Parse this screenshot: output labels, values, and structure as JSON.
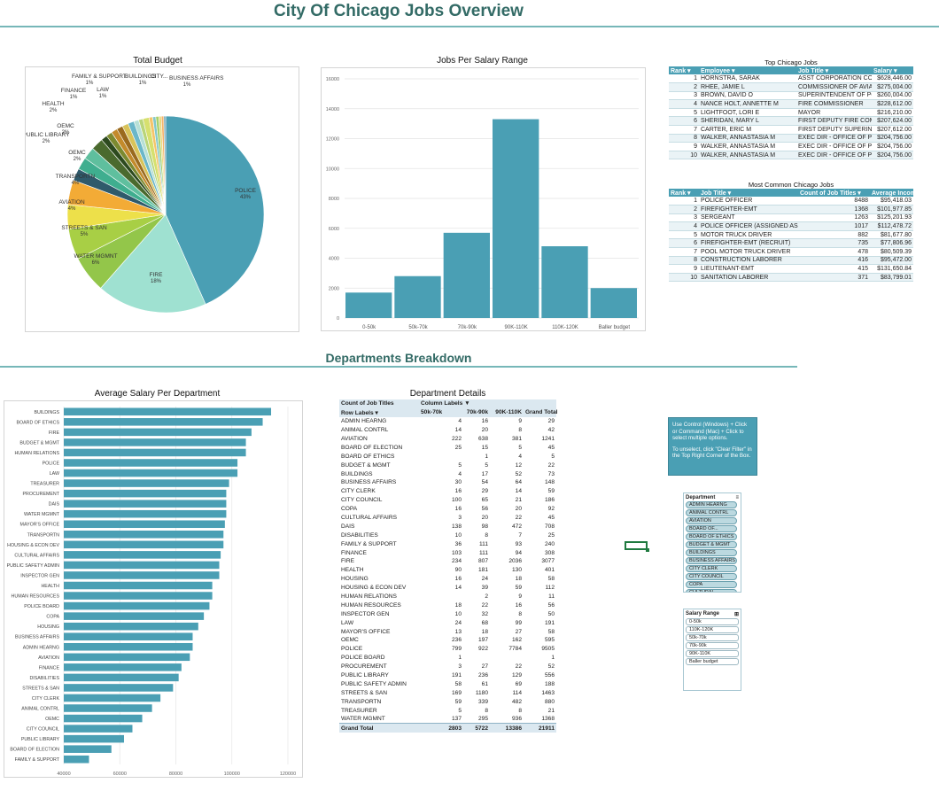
{
  "title": "City Of Chicago Jobs Overview",
  "section2_title": "Departments Breakdown",
  "pie": {
    "title": "Total Budget",
    "slices": [
      {
        "label": "POLICE",
        "pct": 43,
        "color": "#4a9fb4"
      },
      {
        "label": "FIRE",
        "pct": 18,
        "color": "#9fe1d1"
      },
      {
        "label": "WATER MGMNT",
        "pct": 6,
        "color": "#93c64a"
      },
      {
        "label": "STREETS & SAN",
        "pct": 5,
        "color": "#a8cf45"
      },
      {
        "label": "AVIATION",
        "pct": 4,
        "color": "#ede04a"
      },
      {
        "label": "TRANSPORTN",
        "pct": 4,
        "color": "#f3ab36"
      },
      {
        "label": "OEMC",
        "pct": 2,
        "color": "#2f5a6b"
      },
      {
        "label": "PUBLIC LIBRARY",
        "pct": 2,
        "color": "#3fae8f"
      },
      {
        "label": "OEMC",
        "pct": 2,
        "color": "#5fbf9e"
      },
      {
        "label": "HEALTH",
        "pct": 2,
        "color": "#4a6a2e"
      },
      {
        "label": "FINANCE",
        "pct": 1,
        "color": "#2d4a1f"
      },
      {
        "label": "FAMILY & SUPPORT",
        "pct": 1,
        "color": "#7c8a30"
      },
      {
        "label": "",
        "pct": 1,
        "color": "#c38a2b"
      },
      {
        "label": "LAW",
        "pct": 1,
        "color": "#9a6a1e"
      },
      {
        "label": "BUILDINGS",
        "pct": 1,
        "color": "#d8c35a"
      },
      {
        "label": "",
        "pct": 1,
        "color": "#6bb7c9"
      },
      {
        "label": "",
        "pct": 0.8,
        "color": "#b7e0d6"
      },
      {
        "label": "CITY...",
        "pct": 0.7,
        "color": "#b9d57a"
      },
      {
        "label": "BUSINESS AFFAIRS",
        "pct": 1,
        "color": "#d6e06e"
      },
      {
        "label": "",
        "pct": 0.6,
        "color": "#f5c46a"
      },
      {
        "label": "",
        "pct": 0.5,
        "color": "#83c7c9"
      },
      {
        "label": "",
        "pct": 0.5,
        "color": "#a7d16a"
      },
      {
        "label": "",
        "pct": 0.4,
        "color": "#e9d97a"
      },
      {
        "label": "",
        "pct": 0.4,
        "color": "#f6b36a"
      },
      {
        "label": "",
        "pct": 0.3,
        "color": "#6f9fb0"
      }
    ],
    "labels": [
      {
        "text": "FAMILY & SUPPORT",
        "pct": "1%"
      },
      {
        "text": "BUILDINGS",
        "pct": "1%"
      },
      {
        "text": "CITY...",
        "pct": ""
      },
      {
        "text": "BUSINESS AFFAIRS",
        "pct": "1%"
      },
      {
        "text": "FINANCE",
        "pct": "1%"
      },
      {
        "text": "LAW",
        "pct": "1%"
      },
      {
        "text": "HEALTH",
        "pct": "2%"
      },
      {
        "text": "OEMC",
        "pct": "2%"
      },
      {
        "text": "PUBLIC LIBRARY",
        "pct": "2%"
      },
      {
        "text": "OEMC",
        "pct": "2%"
      },
      {
        "text": "TRANSPORTN",
        "pct": "4%"
      },
      {
        "text": "AVIATION",
        "pct": "4%"
      },
      {
        "text": "STREETS & SAN",
        "pct": "5%"
      },
      {
        "text": "WATER MGMNT",
        "pct": "6%"
      },
      {
        "text": "FIRE",
        "pct": "18%"
      },
      {
        "text": "POLICE",
        "pct": "43%"
      }
    ]
  },
  "chart_data": [
    {
      "type": "bar",
      "title": "Jobs Per Salary Range",
      "categories": [
        "0-50k",
        "50k-70k",
        "70k-90k",
        "90K-110K",
        "110K-120K",
        "Baller budget"
      ],
      "values": [
        1700,
        2800,
        5700,
        13300,
        4800,
        2000
      ],
      "ylim": [
        0,
        16000
      ],
      "yticks": [
        "0",
        "2000",
        "4000",
        "6000",
        "8000",
        "10000",
        "12000",
        "14000",
        "16000"
      ],
      "color": "#4a9fb4"
    },
    {
      "type": "bar",
      "orientation": "horizontal",
      "title": "Average Salary Per Department",
      "categories": [
        "BUILDINGS",
        "BOARD OF ETHICS",
        "FIRE",
        "BUDGET & MGMT",
        "HUMAN RELATIONS",
        "POLICE",
        "LAW",
        "TREASURER",
        "PROCUREMENT",
        "DAIS",
        "WATER MGMNT",
        "MAYOR'S OFFICE",
        "TRANSPORTN",
        "HOUSING & ECON DEV",
        "CULTURAL AFFAIRS",
        "PUBLIC SAFETY ADMIN",
        "INSPECTOR GEN",
        "HEALTH",
        "HUMAN RESOURCES",
        "POLICE BOARD",
        "COPA",
        "HOUSING",
        "BUSINESS AFFAIRS",
        "ADMIN HEARNG",
        "AVIATION",
        "FINANCE",
        "DISABILITIES",
        "STREETS & SAN",
        "CITY CLERK",
        "ANIMAL CONTRL",
        "OEMC",
        "CITY COUNCIL",
        "PUBLIC LIBRARY",
        "BOARD OF ELECTION",
        "FAMILY & SUPPORT"
      ],
      "values": [
        114000,
        111000,
        107000,
        105000,
        105000,
        102000,
        102000,
        99000,
        98000,
        98000,
        98000,
        97500,
        97000,
        97000,
        96000,
        95500,
        95500,
        93000,
        93000,
        92000,
        90000,
        88000,
        86000,
        86000,
        85000,
        82000,
        81000,
        79000,
        74500,
        71500,
        68000,
        64500,
        61500,
        57000,
        49000
      ],
      "xlim": [
        40000,
        120000
      ],
      "xticks": [
        "40000",
        "60000",
        "80000",
        "100000",
        "120000"
      ],
      "color": "#4a9fb4"
    }
  ],
  "top_jobs": {
    "title": "Top Chicago Jobs",
    "headers": [
      "Rank",
      "Employee",
      "Job Title",
      "Salary"
    ],
    "rows": [
      [
        "1",
        "HORNSTRA, SARAK",
        "ASST CORPORATION COUN",
        "$628,446.00"
      ],
      [
        "2",
        "RHEE, JAMIE L",
        "COMMISSIONER OF AVIATI",
        "$275,004.00"
      ],
      [
        "3",
        "BROWN, DAVID O",
        "SUPERINTENDENT OF POL",
        "$260,004.00"
      ],
      [
        "4",
        "NANCE HOLT, ANNETTE M",
        "FIRE COMMISSIONER",
        "$228,612.00"
      ],
      [
        "5",
        "LIGHTFOOT, LORI E",
        "MAYOR",
        "$216,210.00"
      ],
      [
        "6",
        "SHERIDAN, MARY L",
        "FIRST DEPUTY FIRE COMM",
        "$207,624.00"
      ],
      [
        "7",
        "CARTER, ERIC M",
        "FIRST DEPUTY SUPERINTE",
        "$207,612.00"
      ],
      [
        "8",
        "WALKER, ANNASTASIA M",
        "EXEC DIR - OFFICE OF PUBL",
        "$204,756.00"
      ],
      [
        "9",
        "WALKER, ANNASTASIA M",
        "EXEC DIR - OFFICE OF PUBL",
        "$204,756.00"
      ],
      [
        "10",
        "WALKER, ANNASTASIA M",
        "EXEC DIR - OFFICE OF PUBL",
        "$204,756.00"
      ]
    ]
  },
  "common_jobs": {
    "title": "Most Common Chicago Jobs",
    "headers": [
      "Rank",
      "Job Title",
      "Count of Job Titles",
      "Average Incom"
    ],
    "rows": [
      [
        "1",
        "POLICE OFFICER",
        "8488",
        "$95,418.03"
      ],
      [
        "2",
        "FIREFIGHTER-EMT",
        "1368",
        "$101,977.85"
      ],
      [
        "3",
        "SERGEANT",
        "1263",
        "$125,201.93"
      ],
      [
        "4",
        "POLICE OFFICER (ASSIGNED AS DET",
        "1017",
        "$112,478.72"
      ],
      [
        "5",
        "MOTOR TRUCK DRIVER",
        "882",
        "$81,677.80"
      ],
      [
        "6",
        "FIREFIGHTER-EMT (RECRUIT)",
        "735",
        "$77,806.96"
      ],
      [
        "7",
        "POOL MOTOR TRUCK DRIVER",
        "478",
        "$80,509.39"
      ],
      [
        "8",
        "CONSTRUCTION LABORER",
        "416",
        "$95,472.00"
      ],
      [
        "9",
        "LIEUTENANT-EMT",
        "415",
        "$131,650.84"
      ],
      [
        "10",
        "SANITATION LABORER",
        "371",
        "$83,799.01"
      ]
    ]
  },
  "pivot": {
    "title": "Department Details",
    "h1": [
      "Count of Job Titles",
      "Column Labels",
      "",
      "",
      ""
    ],
    "h2": [
      "Row Labels",
      "50k-70k",
      "70k-90k",
      "90K-110K",
      "Grand Total"
    ],
    "rows": [
      [
        "ADMIN HEARNG",
        "4",
        "16",
        "9",
        "29"
      ],
      [
        "ANIMAL CONTRL",
        "14",
        "20",
        "8",
        "42"
      ],
      [
        "AVIATION",
        "222",
        "638",
        "381",
        "1241"
      ],
      [
        "BOARD OF ELECTION",
        "25",
        "15",
        "5",
        "45"
      ],
      [
        "BOARD OF ETHICS",
        "",
        "1",
        "4",
        "5"
      ],
      [
        "BUDGET & MGMT",
        "5",
        "5",
        "12",
        "22"
      ],
      [
        "BUILDINGS",
        "4",
        "17",
        "52",
        "73"
      ],
      [
        "BUSINESS AFFAIRS",
        "30",
        "54",
        "64",
        "148"
      ],
      [
        "CITY CLERK",
        "16",
        "29",
        "14",
        "59"
      ],
      [
        "CITY COUNCIL",
        "100",
        "65",
        "21",
        "186"
      ],
      [
        "COPA",
        "16",
        "56",
        "20",
        "92"
      ],
      [
        "CULTURAL AFFAIRS",
        "3",
        "20",
        "22",
        "45"
      ],
      [
        "DAIS",
        "138",
        "98",
        "472",
        "708"
      ],
      [
        "DISABILITIES",
        "10",
        "8",
        "7",
        "25"
      ],
      [
        "FAMILY & SUPPORT",
        "36",
        "111",
        "93",
        "240"
      ],
      [
        "FINANCE",
        "103",
        "111",
        "94",
        "308"
      ],
      [
        "FIRE",
        "234",
        "807",
        "2036",
        "3077"
      ],
      [
        "HEALTH",
        "90",
        "181",
        "130",
        "401"
      ],
      [
        "HOUSING",
        "16",
        "24",
        "18",
        "58"
      ],
      [
        "HOUSING & ECON DEV",
        "14",
        "39",
        "59",
        "112"
      ],
      [
        "HUMAN RELATIONS",
        "",
        "2",
        "9",
        "11"
      ],
      [
        "HUMAN RESOURCES",
        "18",
        "22",
        "16",
        "56"
      ],
      [
        "INSPECTOR GEN",
        "10",
        "32",
        "8",
        "50"
      ],
      [
        "LAW",
        "24",
        "68",
        "99",
        "191"
      ],
      [
        "MAYOR'S OFFICE",
        "13",
        "18",
        "27",
        "58"
      ],
      [
        "OEMC",
        "236",
        "197",
        "162",
        "595"
      ],
      [
        "POLICE",
        "799",
        "922",
        "7784",
        "9505"
      ],
      [
        "POLICE BOARD",
        "1",
        "",
        "",
        "1"
      ],
      [
        "PROCUREMENT",
        "3",
        "27",
        "22",
        "52"
      ],
      [
        "PUBLIC LIBRARY",
        "191",
        "236",
        "129",
        "556"
      ],
      [
        "PUBLIC SAFETY ADMIN",
        "58",
        "61",
        "69",
        "188"
      ],
      [
        "STREETS & SAN",
        "169",
        "1180",
        "114",
        "1463"
      ],
      [
        "TRANSPORTN",
        "59",
        "339",
        "482",
        "880"
      ],
      [
        "TREASURER",
        "5",
        "8",
        "8",
        "21"
      ],
      [
        "WATER MGMNT",
        "137",
        "295",
        "936",
        "1368"
      ]
    ],
    "total": [
      "Grand Total",
      "2803",
      "5722",
      "13386",
      "21911"
    ]
  },
  "note": {
    "line1": "Use Control (Windows) + Click or Command (Mac) + Click to select multiple options.",
    "line2": "To unselect, click \"Clear Filter\" in the Top Right Corner of the Box."
  },
  "dept_slicer": {
    "title": "Department",
    "items": [
      "ADMIN HEARNG",
      "ANIMAL CONTRL",
      "AVIATION",
      "BOARD OF...",
      "BOARD OF ETHICS",
      "BUDGET & MGMT",
      "BUILDINGS",
      "BUSINESS AFFAIRS",
      "CITY CLERK",
      "CITY COUNCIL",
      "COPA",
      "CULTURAL...",
      "DAIS",
      "DISABILITIES",
      "FAMILY &..."
    ]
  },
  "salary_slicer": {
    "title": "Salary Range",
    "items": [
      "0-50k",
      "110K-120K",
      "50k-70k",
      "70k-90k",
      "90K-110K",
      "Baller budget"
    ]
  }
}
